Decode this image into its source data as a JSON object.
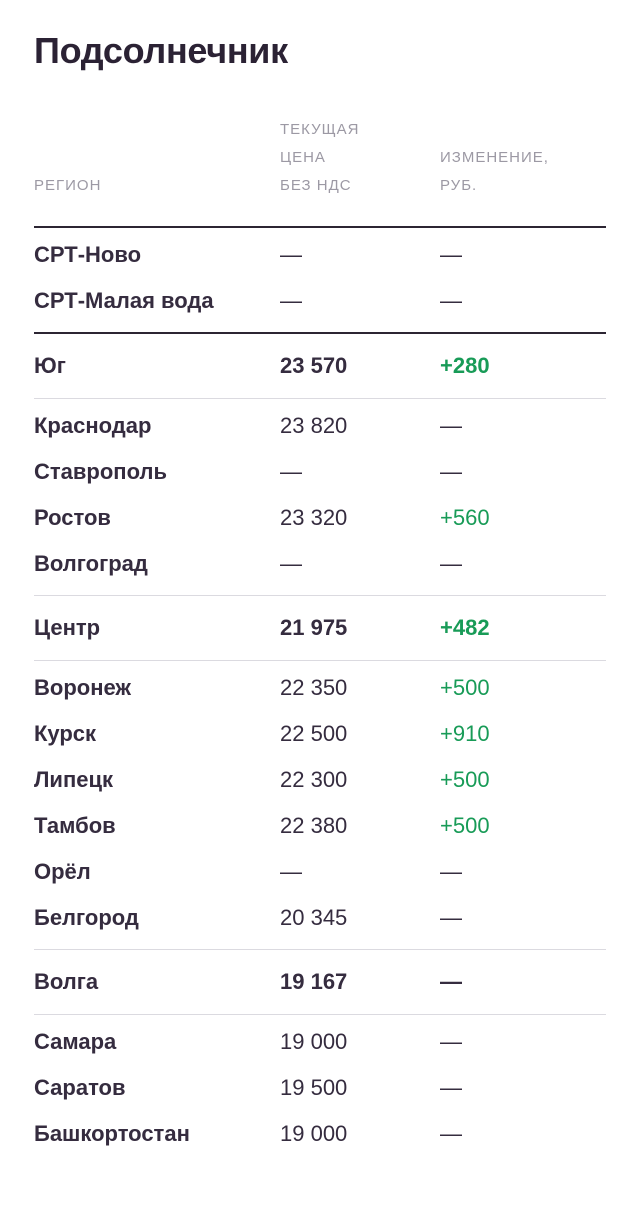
{
  "page": {
    "title": "Подсолнечник"
  },
  "colors": {
    "background": "#FFFFFF",
    "title": "#2B2234",
    "text_dark": "#352C3F",
    "header_gray": "#9C99A4",
    "positive_green": "#189B57",
    "divider_dark": "#2C2533",
    "divider_light": "#DBDAE0"
  },
  "table": {
    "columns": [
      {
        "label": "РЕГИОН"
      },
      {
        "label": "ТЕКУЩАЯ\nЦЕНА\nБЕЗ НДС"
      },
      {
        "label": "ИЗМЕНЕНИЕ,\nРУБ."
      }
    ],
    "rows": [
      {
        "region": "СРТ-Ново",
        "price": "—",
        "change": "—",
        "style": "plain",
        "change_positive": false,
        "divider_after": "none"
      },
      {
        "region": "СРТ-Малая вода",
        "price": "—",
        "change": "—",
        "style": "plain",
        "change_positive": false,
        "divider_after": "dark"
      },
      {
        "region": "Юг",
        "price": "23 570",
        "change": "+280",
        "style": "section",
        "change_positive": true,
        "divider_after": "light"
      },
      {
        "region": "Краснодар",
        "price": "23 820",
        "change": "—",
        "style": "plain",
        "change_positive": false,
        "divider_after": "none"
      },
      {
        "region": "Ставрополь",
        "price": "—",
        "change": "—",
        "style": "plain",
        "change_positive": false,
        "divider_after": "none"
      },
      {
        "region": "Ростов",
        "price": "23 320",
        "change": "+560",
        "style": "plain",
        "change_positive": true,
        "divider_after": "none"
      },
      {
        "region": "Волгоград",
        "price": "—",
        "change": "—",
        "style": "plain",
        "change_positive": false,
        "divider_after": "light"
      },
      {
        "region": "Центр",
        "price": "21 975",
        "change": "+482",
        "style": "section",
        "change_positive": true,
        "divider_after": "light"
      },
      {
        "region": "Воронеж",
        "price": "22 350",
        "change": "+500",
        "style": "plain",
        "change_positive": true,
        "divider_after": "none"
      },
      {
        "region": "Курск",
        "price": "22 500",
        "change": "+910",
        "style": "plain",
        "change_positive": true,
        "divider_after": "none"
      },
      {
        "region": "Липецк",
        "price": "22 300",
        "change": "+500",
        "style": "plain",
        "change_positive": true,
        "divider_after": "none"
      },
      {
        "region": "Тамбов",
        "price": "22 380",
        "change": "+500",
        "style": "plain",
        "change_positive": true,
        "divider_after": "none"
      },
      {
        "region": "Орёл",
        "price": "—",
        "change": "—",
        "style": "plain",
        "change_positive": false,
        "divider_after": "none"
      },
      {
        "region": "Белгород",
        "price": "20 345",
        "change": "—",
        "style": "plain",
        "change_positive": false,
        "divider_after": "light"
      },
      {
        "region": "Волга",
        "price": "19 167",
        "change": "—",
        "style": "section",
        "change_positive": false,
        "divider_after": "light"
      },
      {
        "region": "Самара",
        "price": "19 000",
        "change": "—",
        "style": "plain",
        "change_positive": false,
        "divider_after": "none"
      },
      {
        "region": "Саратов",
        "price": "19 500",
        "change": "—",
        "style": "plain",
        "change_positive": false,
        "divider_after": "none"
      },
      {
        "region": "Башкортостан",
        "price": "19 000",
        "change": "—",
        "style": "plain",
        "change_positive": false,
        "divider_after": "none"
      }
    ]
  }
}
